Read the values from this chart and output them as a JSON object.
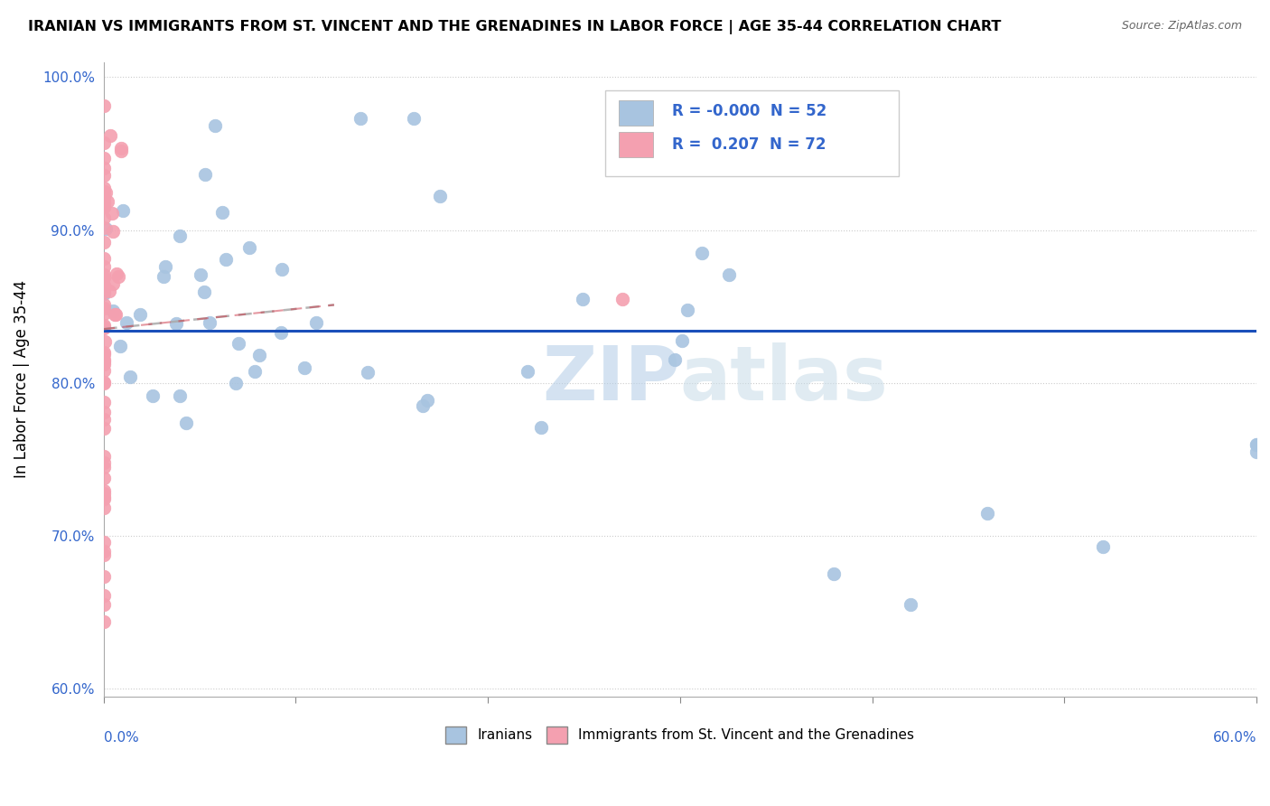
{
  "title": "IRANIAN VS IMMIGRANTS FROM ST. VINCENT AND THE GRENADINES IN LABOR FORCE | AGE 35-44 CORRELATION CHART",
  "source": "Source: ZipAtlas.com",
  "ylabel": "In Labor Force | Age 35-44",
  "yaxis_labels": [
    "60.0%",
    "70.0%",
    "80.0%",
    "90.0%",
    "100.0%"
  ],
  "yaxis_values": [
    0.6,
    0.7,
    0.8,
    0.9,
    1.0
  ],
  "xlim": [
    0.0,
    0.6
  ],
  "ylim": [
    0.595,
    1.01
  ],
  "legend_r_blue": "-0.000",
  "legend_n_blue": "52",
  "legend_r_pink": "0.207",
  "legend_n_pink": "72",
  "blue_color": "#a8c4e0",
  "pink_color": "#f4a0b0",
  "blue_line_color": "#1a4fba",
  "pink_line_color": "#cc3344",
  "watermark_zip": "ZIP",
  "watermark_atlas": "atlas"
}
